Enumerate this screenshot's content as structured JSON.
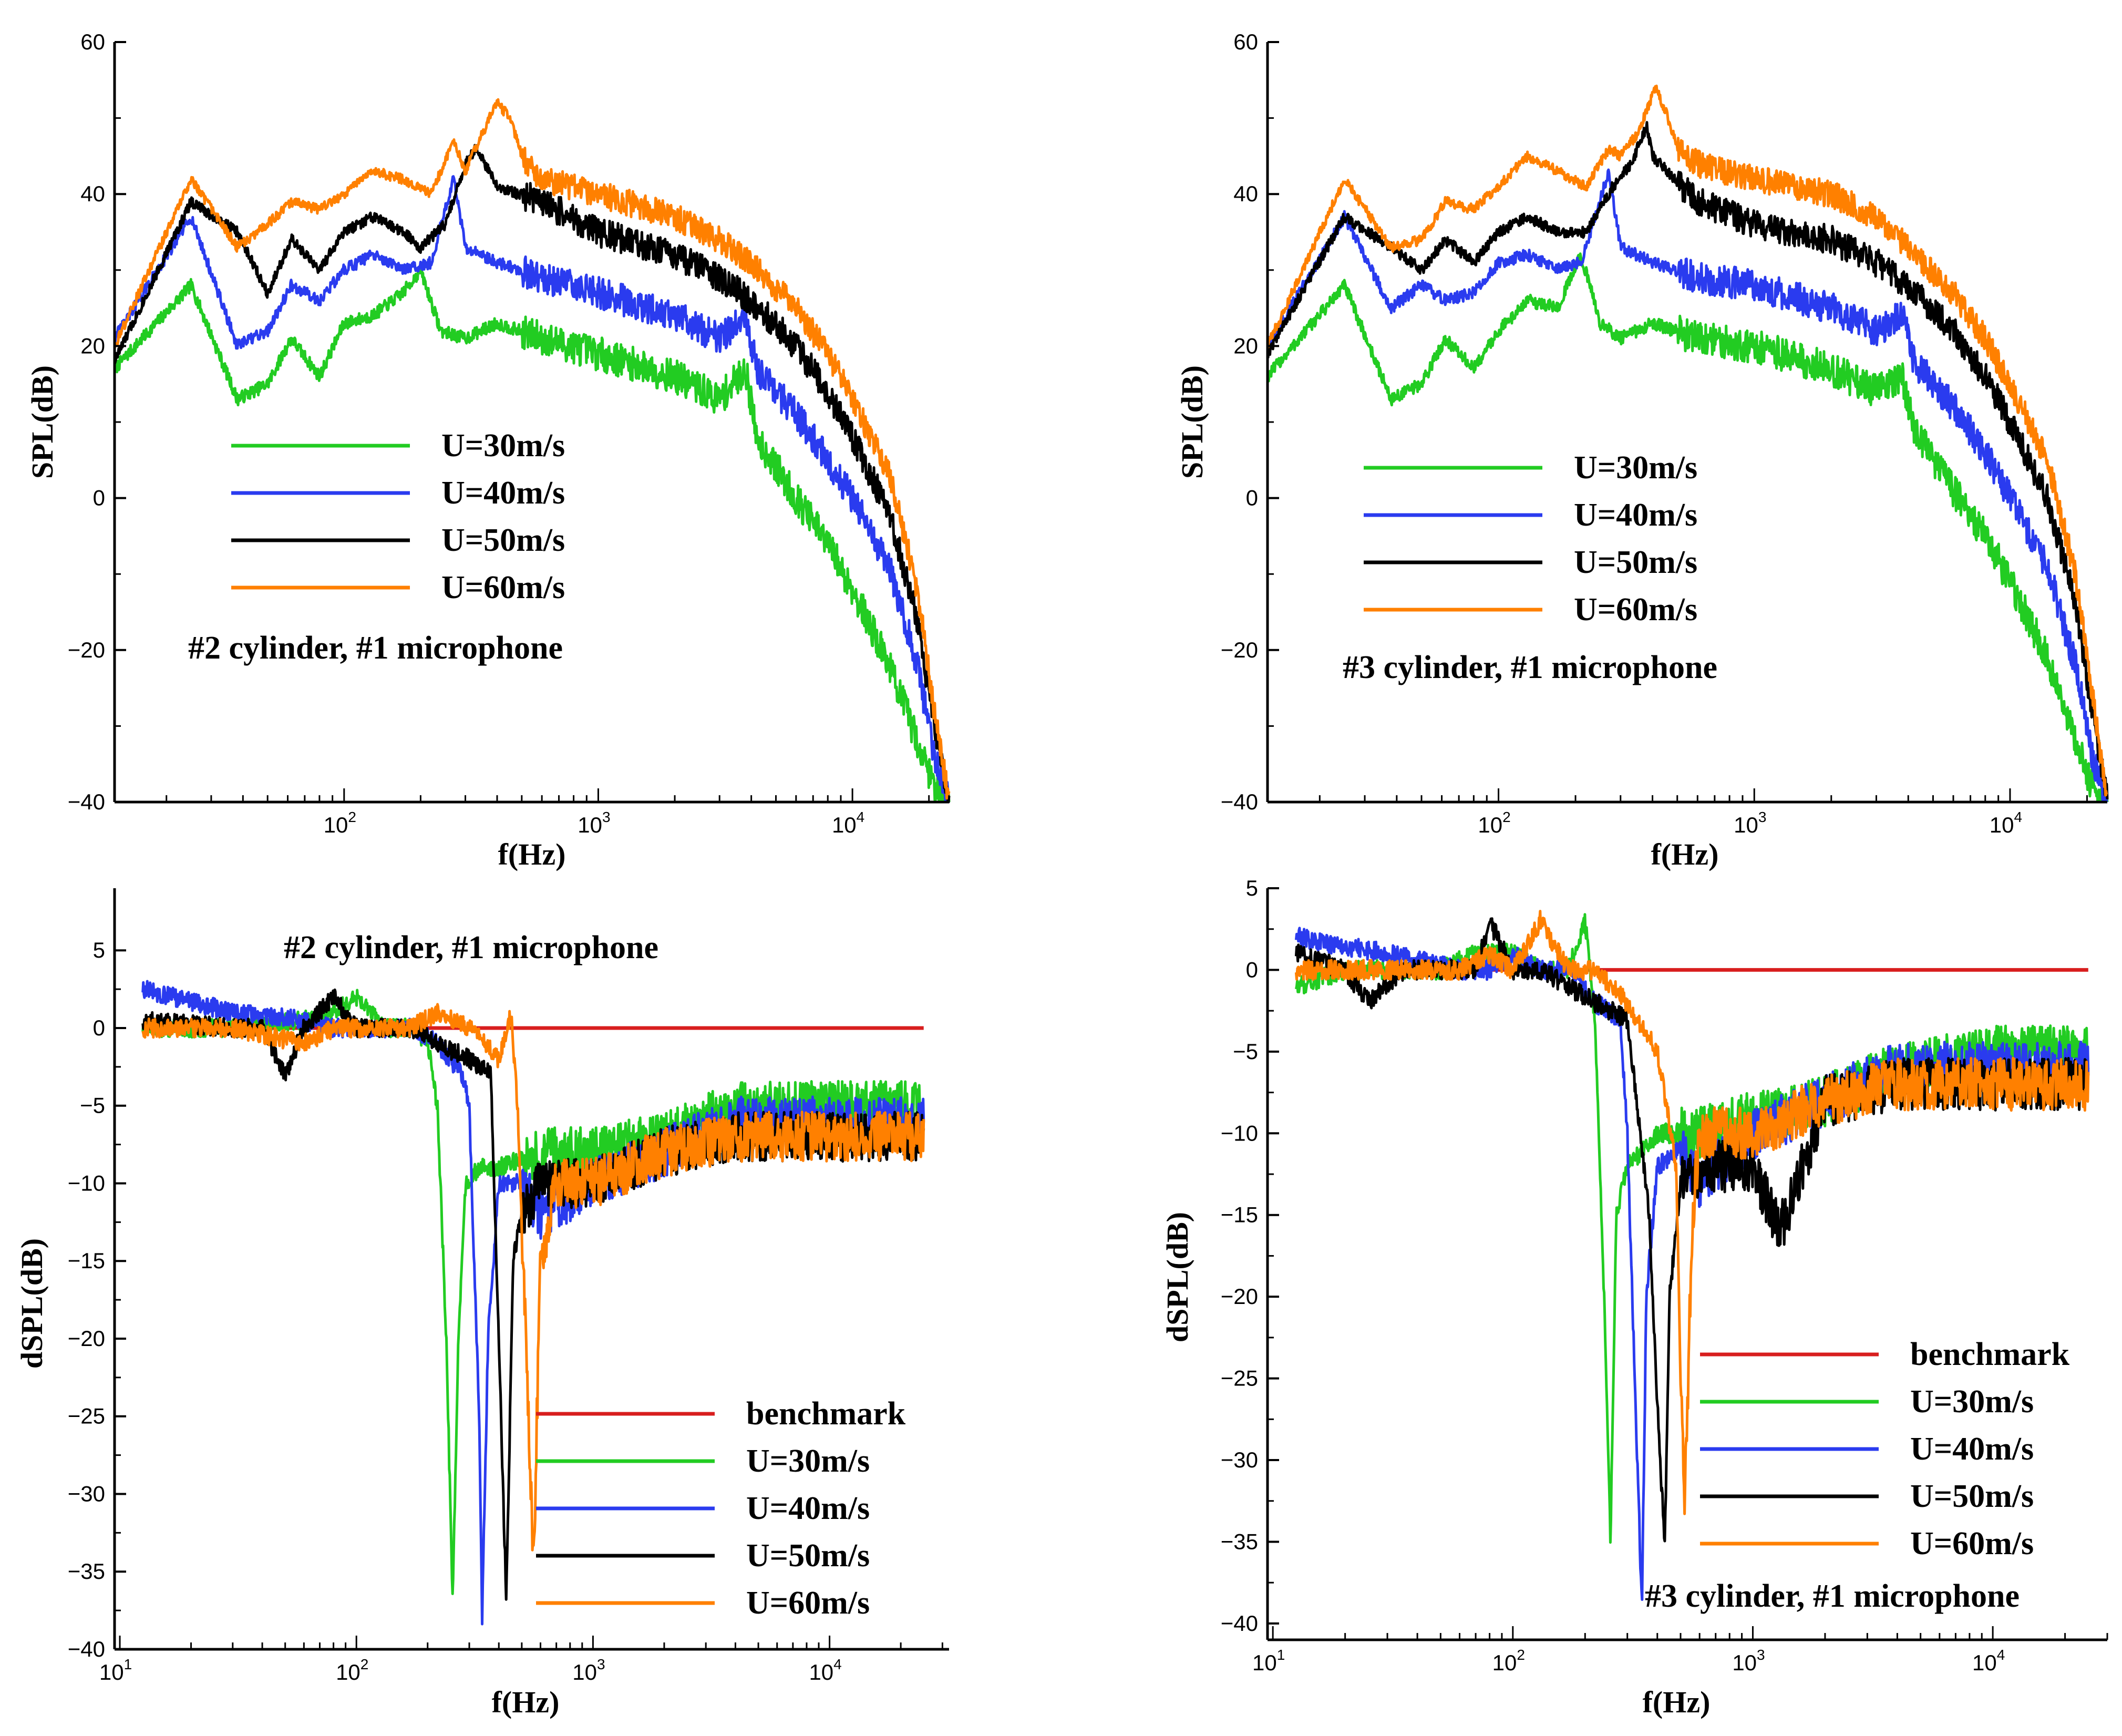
{
  "colors": {
    "benchmark": "#d81e1e",
    "U30": "#22cc22",
    "U40": "#2a3bef",
    "U50": "#000000",
    "U60": "#ff8000"
  },
  "chart_data": [
    {
      "id": "tl",
      "type": "line",
      "annotation": "#2 cylinder, #1 microphone",
      "xlabel": "f(Hz)",
      "ylabel": "SPL(dB)",
      "xscale": "log",
      "xlim": [
        12.5,
        24000
      ],
      "ylim": [
        -40,
        60
      ],
      "yticks": [
        "60",
        "40",
        "20",
        "0",
        "−20",
        "−40"
      ],
      "xticks": [
        {
          "base": "10",
          "exp": "2"
        },
        {
          "base": "10",
          "exp": "3"
        },
        {
          "base": "10",
          "exp": "4"
        }
      ],
      "legend_position": "center-left",
      "series": [
        {
          "name": "U=30m/s",
          "color": "U30",
          "noise": 1.4,
          "x": [
            12.5,
            25,
            38,
            50,
            62,
            80,
            100,
            130,
            170,
            200,
            240,
            300,
            400,
            600,
            1000,
            2000,
            3000,
            3800,
            4200,
            6000,
            8000,
            10000,
            14000,
            18000,
            21000,
            24000
          ],
          "y": [
            17,
            28,
            13,
            15,
            21,
            16,
            23,
            24,
            27,
            30,
            22,
            21,
            23,
            21,
            19,
            16,
            13,
            17,
            8,
            0,
            -6,
            -12,
            -22,
            -32,
            -38,
            -40
          ]
        },
        {
          "name": "U=40m/s",
          "color": "U40",
          "noise": 1.3,
          "x": [
            12.5,
            25,
            38,
            50,
            62,
            80,
            100,
            130,
            170,
            220,
            270,
            300,
            400,
            600,
            1000,
            2000,
            3000,
            3800,
            4200,
            6000,
            8000,
            10000,
            14000,
            18000,
            21000,
            24000
          ],
          "y": [
            21,
            37,
            20,
            22,
            28,
            26,
            30,
            32,
            30,
            31,
            42,
            33,
            31,
            29,
            27,
            24,
            21,
            24,
            17,
            11,
            5,
            0,
            -9,
            -22,
            -34,
            -40
          ]
        },
        {
          "name": "U=50m/s",
          "color": "U50",
          "noise": 1.2,
          "x": [
            12.5,
            25,
            38,
            50,
            62,
            80,
            100,
            130,
            170,
            200,
            250,
            300,
            330,
            400,
            600,
            1000,
            2000,
            3000,
            4000,
            6000,
            8000,
            10000,
            14000,
            18000,
            21000,
            24000
          ],
          "y": [
            18,
            39,
            35,
            27,
            34,
            30,
            35,
            37,
            35,
            33,
            36,
            44,
            46,
            41,
            39,
            35,
            32,
            29,
            26,
            20,
            14,
            8,
            -2,
            -16,
            -30,
            -40
          ]
        },
        {
          "name": "U=60m/s",
          "color": "U60",
          "noise": 1.1,
          "x": [
            12.5,
            25,
            38,
            50,
            62,
            80,
            100,
            130,
            170,
            220,
            270,
            300,
            350,
            400,
            450,
            500,
            600,
            1000,
            2000,
            3000,
            4000,
            6000,
            8000,
            10000,
            14000,
            18000,
            21000,
            24000
          ],
          "y": [
            20,
            42,
            33,
            36,
            39,
            38,
            40,
            43,
            42,
            40,
            47,
            43,
            48,
            52,
            50,
            45,
            42,
            40,
            37,
            34,
            31,
            25,
            19,
            13,
            3,
            -12,
            -28,
            -40
          ]
        }
      ]
    },
    {
      "id": "tr",
      "type": "line",
      "annotation": "#3 cylinder, #1 microphone",
      "xlabel": "f(Hz)",
      "ylabel": "SPL(dB)",
      "xscale": "log",
      "xlim": [
        12.5,
        24000
      ],
      "ylim": [
        -40,
        60
      ],
      "yticks": [
        "60",
        "40",
        "20",
        "0",
        "−20",
        "−40"
      ],
      "xticks": [
        {
          "base": "10",
          "exp": "2"
        },
        {
          "base": "10",
          "exp": "3"
        },
        {
          "base": "10",
          "exp": "4"
        }
      ],
      "legend_position": "center-left",
      "series": [
        {
          "name": "U=30m/s",
          "color": "U30",
          "noise": 1.4,
          "x": [
            12.5,
            25,
            38,
            50,
            62,
            80,
            100,
            130,
            170,
            210,
            250,
            300,
            400,
            600,
            1000,
            2000,
            3000,
            3800,
            4200,
            6000,
            8000,
            10000,
            14000,
            18000,
            21000,
            24000
          ],
          "y": [
            16,
            28,
            13,
            15,
            21,
            17,
            22,
            26,
            25,
            32,
            23,
            21,
            23,
            21,
            20,
            17,
            14,
            16,
            9,
            1,
            -5,
            -11,
            -21,
            -32,
            -38,
            -40
          ]
        },
        {
          "name": "U=40m/s",
          "color": "U40",
          "noise": 1.3,
          "x": [
            12.5,
            25,
            38,
            50,
            62,
            80,
            100,
            130,
            170,
            210,
            270,
            300,
            400,
            600,
            1000,
            2000,
            3000,
            3800,
            4200,
            6000,
            8000,
            10000,
            14000,
            18000,
            21000,
            24000
          ],
          "y": [
            20,
            37,
            25,
            28,
            26,
            27,
            31,
            32,
            30,
            31,
            43,
            33,
            31,
            29,
            28,
            25,
            22,
            24,
            18,
            12,
            6,
            0,
            -9,
            -22,
            -34,
            -40
          ]
        },
        {
          "name": "U=50m/s",
          "color": "U50",
          "noise": 1.2,
          "x": [
            12.5,
            25,
            38,
            50,
            62,
            80,
            100,
            130,
            170,
            220,
            280,
            330,
            380,
            400,
            600,
            1000,
            2000,
            3000,
            4000,
            6000,
            8000,
            10000,
            14000,
            18000,
            21000,
            24000
          ],
          "y": [
            19,
            37,
            33,
            30,
            34,
            31,
            35,
            37,
            35,
            35,
            41,
            44,
            49,
            45,
            39,
            36,
            34,
            31,
            28,
            22,
            16,
            10,
            0,
            -14,
            -28,
            -40
          ]
        },
        {
          "name": "U=60m/s",
          "color": "U60",
          "noise": 1.1,
          "x": [
            12.5,
            25,
            38,
            50,
            62,
            80,
            100,
            130,
            170,
            220,
            270,
            300,
            350,
            410,
            450,
            500,
            600,
            1000,
            2000,
            3000,
            4000,
            6000,
            8000,
            10000,
            14000,
            18000,
            21000,
            24000
          ],
          "y": [
            20,
            42,
            33,
            34,
            39,
            38,
            41,
            45,
            43,
            41,
            46,
            45,
            48,
            54,
            51,
            46,
            44,
            42,
            40,
            37,
            33,
            27,
            21,
            15,
            5,
            -10,
            -26,
            -40
          ]
        }
      ]
    },
    {
      "id": "bl",
      "type": "line",
      "annotation": "#2 cylinder, #1 microphone",
      "xlabel": "f(Hz)",
      "ylabel": "dSPL(dB)",
      "xscale": "log",
      "xlim": [
        9.5,
        32000
      ],
      "ylim": [
        -40,
        9
      ],
      "yticks": [
        "5",
        "0",
        "−5",
        "−10",
        "−15",
        "−20",
        "−25",
        "−30",
        "−35",
        "−40"
      ],
      "xticks": [
        {
          "base": "10",
          "exp": "1"
        },
        {
          "base": "10",
          "exp": "2"
        },
        {
          "base": "10",
          "exp": "3"
        },
        {
          "base": "10",
          "exp": "4"
        }
      ],
      "legend_position": "bottom-right",
      "series": [
        {
          "name": "benchmark",
          "color": "benchmark",
          "noise": 0,
          "x": [
            12.5,
            25000
          ],
          "y": [
            0,
            0
          ]
        },
        {
          "name": "U=30m/s",
          "color": "U30",
          "noise": 1.0,
          "x": [
            12.5,
            30,
            60,
            80,
            100,
            130,
            170,
            200,
            220,
            240,
            255,
            270,
            290,
            330,
            400,
            600,
            1000,
            2000,
            4000,
            10000,
            25000
          ],
          "y": [
            0,
            0,
            0.5,
            1,
            2,
            0,
            0,
            -1,
            -5,
            -20,
            -37,
            -20,
            -10,
            -9,
            -9,
            -8,
            -8,
            -7,
            -5,
            -5,
            -5
          ]
        },
        {
          "name": "U=40m/s",
          "color": "U40",
          "noise": 1.0,
          "x": [
            12.5,
            30,
            60,
            80,
            100,
            130,
            170,
            220,
            280,
            300,
            330,
            340,
            360,
            400,
            500,
            600,
            1000,
            2000,
            4000,
            10000,
            25000
          ],
          "y": [
            2.5,
            1,
            0.5,
            0,
            0,
            0,
            0,
            -1,
            -3,
            -5,
            -25,
            -38,
            -20,
            -10,
            -10,
            -12,
            -10,
            -8,
            -6,
            -6,
            -6
          ]
        },
        {
          "name": "U=50m/s",
          "color": "U50",
          "noise": 1.0,
          "x": [
            12.5,
            30,
            40,
            50,
            60,
            80,
            100,
            130,
            170,
            220,
            300,
            370,
            400,
            430,
            460,
            500,
            600,
            1000,
            2000,
            4000,
            10000,
            25000
          ],
          "y": [
            0.5,
            0,
            0,
            -3,
            0,
            2,
            0,
            0,
            0,
            -1,
            -2,
            -3,
            -20,
            -37,
            -15,
            -12,
            -10,
            -10,
            -8,
            -7,
            -7,
            -7
          ]
        },
        {
          "name": "U=60m/s",
          "color": "U60",
          "noise": 1.0,
          "x": [
            12.5,
            30,
            60,
            80,
            100,
            130,
            170,
            220,
            300,
            400,
            450,
            480,
            520,
            560,
            600,
            700,
            1000,
            2000,
            4000,
            10000,
            25000
          ],
          "y": [
            0,
            0,
            -1,
            0,
            0,
            0,
            0,
            1,
            0,
            -2,
            1,
            -5,
            -20,
            -35,
            -15,
            -10,
            -10,
            -8,
            -7,
            -7,
            -7
          ]
        }
      ]
    },
    {
      "id": "br",
      "type": "line",
      "annotation": "#3 cylinder, #1 microphone",
      "xlabel": "f(Hz)",
      "ylabel": "dSPL(dB)",
      "xscale": "log",
      "xlim": [
        9.5,
        30000
      ],
      "ylim": [
        -41,
        5
      ],
      "yticks": [
        "5",
        "0",
        "−5",
        "−10",
        "−15",
        "−20",
        "−25",
        "−30",
        "−35",
        "−40"
      ],
      "xticks": [
        {
          "base": "10",
          "exp": "1"
        },
        {
          "base": "10",
          "exp": "2"
        },
        {
          "base": "10",
          "exp": "3"
        },
        {
          "base": "10",
          "exp": "4"
        }
      ],
      "legend_position": "bottom-right",
      "series": [
        {
          "name": "benchmark",
          "color": "benchmark",
          "noise": 0,
          "x": [
            12.5,
            25000
          ],
          "y": [
            0,
            0
          ]
        },
        {
          "name": "U=30m/s",
          "color": "U30",
          "noise": 1.0,
          "x": [
            12.5,
            20,
            30,
            50,
            70,
            100,
            130,
            170,
            200,
            220,
            240,
            255,
            270,
            300,
            400,
            600,
            1000,
            2000,
            4000,
            10000,
            25000
          ],
          "y": [
            -1,
            0,
            0,
            0,
            1,
            1,
            0,
            0,
            3,
            -3,
            -20,
            -35,
            -15,
            -12,
            -10,
            -10,
            -9,
            -8,
            -6,
            -5,
            -5
          ]
        },
        {
          "name": "U=40m/s",
          "color": "U40",
          "noise": 1.0,
          "x": [
            12.5,
            30,
            60,
            80,
            100,
            130,
            170,
            220,
            280,
            300,
            330,
            345,
            360,
            400,
            500,
            600,
            1000,
            2000,
            4000,
            10000,
            25000
          ],
          "y": [
            2,
            1,
            0,
            0,
            1,
            0,
            0,
            -2,
            -3,
            -10,
            -30,
            -39,
            -20,
            -12,
            -11,
            -13,
            -10,
            -8,
            -6,
            -6,
            -6
          ]
        },
        {
          "name": "U=50m/s",
          "color": "U50",
          "noise": 1.0,
          "x": [
            12.5,
            20,
            25,
            35,
            50,
            70,
            80,
            100,
            130,
            170,
            220,
            300,
            370,
            410,
            430,
            450,
            500,
            700,
            1000,
            1300,
            2000,
            4000,
            10000,
            25000
          ],
          "y": [
            1,
            0,
            -2,
            0,
            0,
            0,
            3,
            0,
            0,
            -1,
            -2,
            -3,
            -15,
            -30,
            -35,
            -20,
            -13,
            -12,
            -12,
            -16,
            -8,
            -7,
            -7,
            -7
          ]
        },
        {
          "name": "U=60m/s",
          "color": "U60",
          "noise": 1.0,
          "x": [
            12.5,
            30,
            60,
            80,
            100,
            120,
            130,
            170,
            220,
            300,
            400,
            480,
            500,
            520,
            560,
            600,
            700,
            1000,
            2000,
            4000,
            10000,
            25000
          ],
          "y": [
            0,
            0,
            0,
            1,
            0,
            2,
            3,
            0,
            0,
            -2,
            -5,
            -12,
            -25,
            -33,
            -15,
            -10,
            -10,
            -10,
            -8,
            -7,
            -7,
            -7
          ]
        }
      ]
    }
  ]
}
